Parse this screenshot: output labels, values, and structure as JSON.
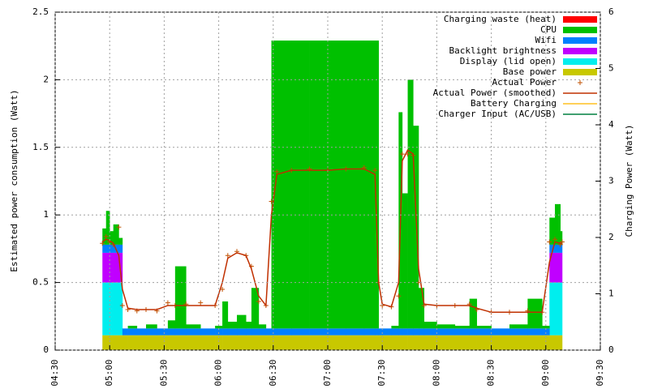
{
  "chart_data": {
    "type": "stacked-step-area",
    "y_label": "Estimated power consumption (Watt)",
    "y2_label": "Charging Power (Watt)",
    "x": [
      296,
      298,
      300,
      302,
      305,
      307,
      310,
      315,
      320,
      326,
      332,
      336,
      342,
      350,
      358,
      362,
      365,
      370,
      375,
      378,
      382,
      386,
      389,
      392,
      400,
      410,
      420,
      430,
      440,
      446,
      448,
      450,
      455,
      459,
      461,
      464,
      467,
      470,
      473,
      480,
      490,
      498,
      502,
      510,
      520,
      530,
      538,
      542,
      545,
      548,
      549
    ],
    "xlim": [
      270,
      570
    ],
    "xticks": [
      {
        "value": 270,
        "label": "04:30"
      },
      {
        "value": 300,
        "label": "05:00"
      },
      {
        "value": 330,
        "label": "05:30"
      },
      {
        "value": 360,
        "label": "06:00"
      },
      {
        "value": 390,
        "label": "06:30"
      },
      {
        "value": 420,
        "label": "07:00"
      },
      {
        "value": 450,
        "label": "07:30"
      },
      {
        "value": 480,
        "label": "08:00"
      },
      {
        "value": 510,
        "label": "08:30"
      },
      {
        "value": 540,
        "label": "09:00"
      },
      {
        "value": 570,
        "label": "09:30"
      }
    ],
    "ylim": [
      0,
      2.5
    ],
    "yticks": [
      0,
      0.5,
      1,
      1.5,
      2,
      2.5
    ],
    "y2lim": [
      0,
      6
    ],
    "y2ticks": [
      0,
      1,
      2,
      3,
      4,
      5,
      6
    ],
    "grid": true,
    "legend": "top-right",
    "series": [
      {
        "name": "Charging waste (heat)",
        "color": "#ff0000",
        "style": "area",
        "values": [
          0,
          0,
          0,
          0,
          0,
          0,
          0,
          0,
          0,
          0,
          0,
          0,
          0,
          0,
          0,
          0,
          0,
          0,
          0,
          0,
          0,
          0,
          0,
          0,
          0,
          0,
          0,
          0,
          0,
          0,
          0,
          0,
          0,
          0,
          0,
          0,
          0,
          0,
          0,
          0,
          0,
          0,
          0,
          0,
          0,
          0,
          0,
          0,
          0,
          0,
          0
        ]
      },
      {
        "name": "CPU",
        "color": "#00c000",
        "style": "area",
        "values": [
          0.12,
          0.25,
          0.1,
          0.15,
          0.05,
          0,
          0.02,
          0,
          0.03,
          0,
          0.06,
          0.46,
          0.03,
          0,
          0.02,
          0.2,
          0.05,
          0.1,
          0.05,
          0.3,
          0.03,
          0,
          2.13,
          2.13,
          2.13,
          2.13,
          2.13,
          2.13,
          2.13,
          2.13,
          0,
          0,
          0.02,
          1.6,
          1.0,
          1.84,
          1.5,
          0.3,
          0.05,
          0.03,
          0.02,
          0.22,
          0.02,
          0,
          0.03,
          0.22,
          0.02,
          0.2,
          0.3,
          0.1,
          0.1
        ]
      },
      {
        "name": "Wifi",
        "color": "#0080ff",
        "style": "area",
        "values": [
          0.06,
          0.06,
          0.06,
          0.06,
          0.06,
          0.05,
          0.05,
          0.05,
          0.05,
          0.05,
          0.05,
          0.05,
          0.05,
          0.05,
          0.05,
          0.05,
          0.05,
          0.05,
          0.05,
          0.05,
          0.05,
          0.05,
          0.05,
          0.05,
          0.05,
          0.05,
          0.05,
          0.05,
          0.05,
          0.05,
          0.05,
          0.05,
          0.05,
          0.05,
          0.05,
          0.05,
          0.05,
          0.05,
          0.05,
          0.05,
          0.05,
          0.05,
          0.05,
          0.05,
          0.05,
          0.05,
          0.05,
          0.06,
          0.06,
          0.06,
          0.06
        ]
      },
      {
        "name": "Backlight brightness",
        "color": "#c000ff",
        "style": "area",
        "values": [
          0.22,
          0.22,
          0.22,
          0.22,
          0.22,
          0,
          0,
          0,
          0,
          0,
          0,
          0,
          0,
          0,
          0,
          0,
          0,
          0,
          0,
          0,
          0,
          0,
          0,
          0,
          0,
          0,
          0,
          0,
          0,
          0,
          0,
          0,
          0,
          0,
          0,
          0,
          0,
          0,
          0,
          0,
          0,
          0,
          0,
          0,
          0,
          0,
          0,
          0.22,
          0.22,
          0.22,
          0.22
        ]
      },
      {
        "name": "Display (lid open)",
        "color": "#00eeee",
        "style": "area",
        "values": [
          0.39,
          0.39,
          0.39,
          0.39,
          0.39,
          0,
          0,
          0,
          0,
          0,
          0,
          0,
          0,
          0,
          0,
          0,
          0,
          0,
          0,
          0,
          0,
          0,
          0,
          0,
          0,
          0,
          0,
          0,
          0,
          0,
          0,
          0,
          0,
          0,
          0,
          0,
          0,
          0,
          0,
          0,
          0,
          0,
          0,
          0,
          0,
          0,
          0,
          0.39,
          0.39,
          0.39,
          0.39
        ]
      },
      {
        "name": "Base power",
        "color": "#c8c800",
        "style": "area",
        "values": [
          0.11,
          0.11,
          0.11,
          0.11,
          0.11,
          0.11,
          0.11,
          0.11,
          0.11,
          0.11,
          0.11,
          0.11,
          0.11,
          0.11,
          0.11,
          0.11,
          0.11,
          0.11,
          0.11,
          0.11,
          0.11,
          0.11,
          0.11,
          0.11,
          0.11,
          0.11,
          0.11,
          0.11,
          0.11,
          0.11,
          0.11,
          0.11,
          0.11,
          0.11,
          0.11,
          0.11,
          0.11,
          0.11,
          0.11,
          0.11,
          0.11,
          0.11,
          0.11,
          0.11,
          0.11,
          0.11,
          0.11,
          0.11,
          0.11,
          0.11,
          0.11
        ]
      },
      {
        "name": "Actual Power",
        "color": "#c05000",
        "style": "points",
        "values": [
          0.79,
          0.84,
          0.8,
          0.78,
          0.91,
          0.33,
          0.3,
          0.29,
          0.3,
          0.29,
          0.35,
          0.33,
          0.34,
          0.35,
          0.33,
          0.45,
          0.7,
          0.73,
          0.7,
          0.62,
          0.36,
          0.33,
          1.1,
          1.32,
          1.33,
          1.34,
          1.33,
          1.34,
          1.35,
          1.33,
          0.5,
          0.33,
          0.32,
          0.4,
          1.45,
          1.45,
          1.44,
          0.5,
          0.33,
          0.33,
          0.33,
          0.34,
          0.3,
          0.28,
          0.28,
          0.29,
          0.28,
          0.8,
          0.82,
          0.78,
          0.8
        ]
      },
      {
        "name": "Actual Power (smoothed)",
        "color": "#c03000",
        "style": "line",
        "values": [
          0.8,
          0.82,
          0.81,
          0.79,
          0.7,
          0.45,
          0.31,
          0.3,
          0.3,
          0.3,
          0.33,
          0.33,
          0.33,
          0.33,
          0.33,
          0.5,
          0.68,
          0.72,
          0.7,
          0.6,
          0.4,
          0.33,
          1.0,
          1.3,
          1.33,
          1.33,
          1.33,
          1.34,
          1.34,
          1.3,
          0.5,
          0.34,
          0.32,
          0.5,
          1.4,
          1.48,
          1.45,
          0.6,
          0.34,
          0.33,
          0.33,
          0.33,
          0.31,
          0.28,
          0.28,
          0.28,
          0.28,
          0.65,
          0.8,
          0.79,
          0.79
        ]
      },
      {
        "name": "Battery Charging",
        "color": "#ffc020",
        "style": "line",
        "axis": "y2",
        "values": [
          null,
          null,
          null,
          null,
          null,
          null,
          null,
          null,
          null,
          null,
          null,
          null,
          null,
          null,
          null,
          null,
          null,
          null,
          null,
          null,
          null,
          null,
          null,
          null,
          null,
          null,
          null,
          null,
          null,
          null,
          null,
          null,
          null,
          null,
          null,
          null,
          null,
          null,
          null,
          null,
          null,
          null,
          null,
          null,
          null,
          null,
          null,
          null,
          null,
          null,
          null
        ]
      },
      {
        "name": "Charger Input (AC/USB)",
        "color": "#008040",
        "style": "line",
        "axis": "y2",
        "values": [
          null,
          null,
          null,
          null,
          null,
          null,
          null,
          null,
          null,
          null,
          null,
          null,
          null,
          null,
          null,
          null,
          null,
          null,
          null,
          null,
          null,
          null,
          null,
          null,
          null,
          null,
          null,
          null,
          null,
          null,
          null,
          null,
          null,
          null,
          null,
          null,
          null,
          null,
          null,
          null,
          null,
          null,
          null,
          null,
          null,
          null,
          null,
          null,
          null,
          null,
          null
        ]
      }
    ]
  }
}
